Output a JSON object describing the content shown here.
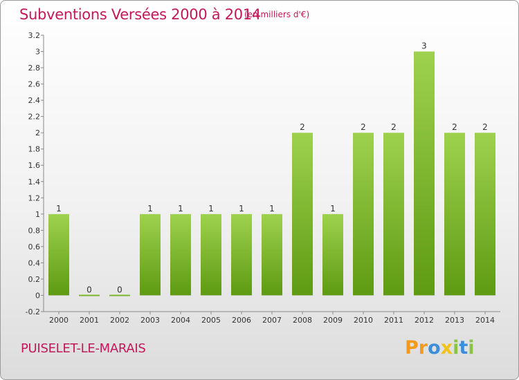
{
  "header": {
    "title": "Subventions Versées 2000 à 2014",
    "unit": "(en milliers d'€)"
  },
  "footer": {
    "town": "PUISELET-LE-MARAIS",
    "logo": "Proxiti",
    "logo_letters": [
      {
        "ch": "P",
        "color": "#f39a1e"
      },
      {
        "ch": "r",
        "color": "#f39a1e"
      },
      {
        "ch": "o",
        "color": "#3a8fd8"
      },
      {
        "ch": "x",
        "color": "#f2c21b"
      },
      {
        "ch": "i",
        "color": "#8bc34a"
      },
      {
        "ch": "t",
        "color": "#3a8fd8"
      },
      {
        "ch": "i",
        "color": "#8bc34a"
      }
    ]
  },
  "colors": {
    "bar_top": "#9ed24e",
    "bar_bottom": "#5e9a12",
    "axis_text": "#333333",
    "title": "#c2185b"
  },
  "chart_data": {
    "type": "bar",
    "title": "Subventions Versées 2000 à 2014",
    "ylabel": "(en milliers d'€)",
    "xlabel": "",
    "categories": [
      "2000",
      "2001",
      "2002",
      "2003",
      "2004",
      "2005",
      "2006",
      "2007",
      "2008",
      "2009",
      "2010",
      "2011",
      "2012",
      "2013",
      "2014"
    ],
    "values": [
      1,
      0,
      0,
      1,
      1,
      1,
      1,
      1,
      2,
      1,
      2,
      2,
      3,
      2,
      2
    ],
    "data_labels": [
      "1",
      "0",
      "0",
      "1",
      "1",
      "1",
      "1",
      "1",
      "2",
      "1",
      "2",
      "2",
      "3",
      "2",
      "2"
    ],
    "ylim": [
      -0.2,
      3.2
    ],
    "yticks": [
      -0.2,
      0,
      0.2,
      0.4,
      0.6,
      0.8,
      1,
      1.2,
      1.4,
      1.6,
      1.8,
      2,
      2.2,
      2.4,
      2.6,
      2.8,
      3,
      3.2
    ],
    "ytick_labels": [
      "-0.2",
      "0",
      "0.2",
      "0.4",
      "0.6",
      "0.8",
      "1",
      "1.2",
      "1.4",
      "1.6",
      "1.8",
      "2",
      "2.2",
      "2.4",
      "2.6",
      "2.8",
      "3",
      "3.2"
    ],
    "grid": false,
    "legend": "none"
  }
}
